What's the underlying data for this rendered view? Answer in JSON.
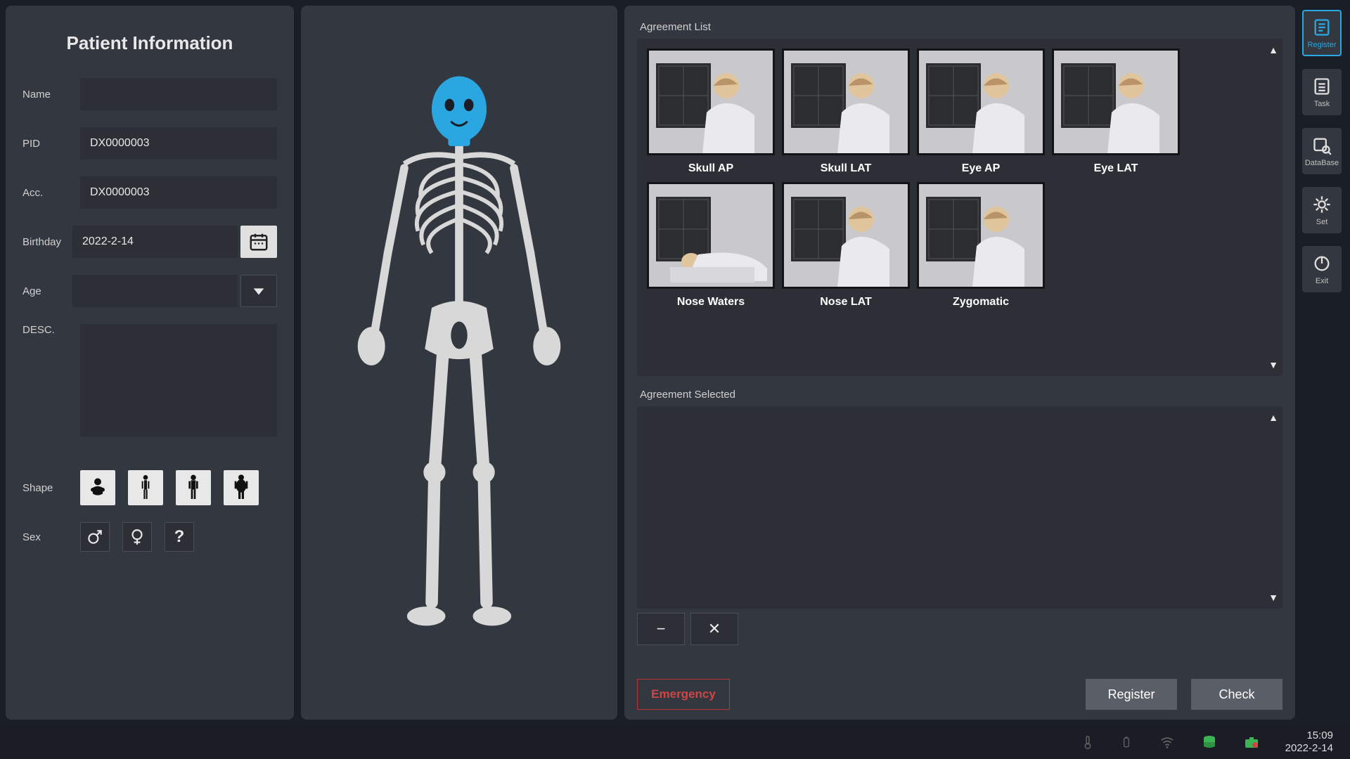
{
  "patient_info": {
    "title": "Patient Information",
    "name_label": "Name",
    "name_value": "",
    "pid_label": "PID",
    "pid_value": "DX0000003",
    "acc_label": "Acc.",
    "acc_value": "DX0000003",
    "birthday_label": "Birthday",
    "birthday_value": "2022-2-14",
    "age_label": "Age",
    "age_value": "",
    "desc_label": "DESC.",
    "desc_value": "",
    "shape_label": "Shape",
    "sex_label": "Sex"
  },
  "agreements": {
    "list_title": "Agreement List",
    "selected_title": "Agreement Selected",
    "items": [
      {
        "label": "Skull AP"
      },
      {
        "label": "Skull LAT"
      },
      {
        "label": "Eye AP"
      },
      {
        "label": "Eye LAT"
      },
      {
        "label": "Nose Waters"
      },
      {
        "label": "Nose LAT"
      },
      {
        "label": "Zygomatic"
      }
    ]
  },
  "actions": {
    "emergency": "Emergency",
    "register": "Register",
    "check": "Check"
  },
  "side_nav": [
    {
      "label": "Register",
      "active": true
    },
    {
      "label": "Task",
      "active": false
    },
    {
      "label": "DataBase",
      "active": false
    },
    {
      "label": "Set",
      "active": false
    },
    {
      "label": "Exit",
      "active": false
    }
  ],
  "status": {
    "time": "15:09",
    "date": "2022-2-14"
  },
  "colors": {
    "bg": "#1a1e26",
    "panel": "#33373f",
    "input": "#2c2f36",
    "accent": "#2aa7e0",
    "skeleton_highlight": "#2aa7e0",
    "emergency": "#d04545"
  }
}
